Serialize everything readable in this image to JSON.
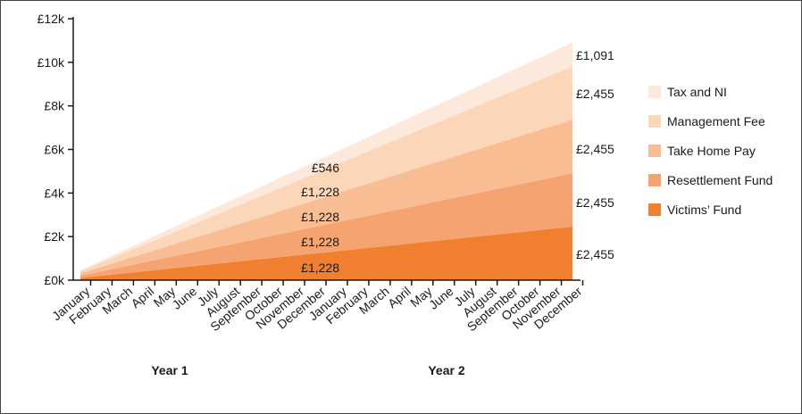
{
  "chart_data": {
    "type": "area",
    "stacked": true,
    "categories": [
      "January",
      "February",
      "March",
      "April",
      "May",
      "June",
      "July",
      "August",
      "September",
      "October",
      "November",
      "December",
      "January",
      "February",
      "March",
      "April",
      "May",
      "June",
      "July",
      "August",
      "September",
      "October",
      "November",
      "December"
    ],
    "groups": [
      "Year 1",
      "Year 2"
    ],
    "yticks": [
      "£0k",
      "£2k",
      "£4k",
      "£6k",
      "£8k",
      "£10k",
      "£12k"
    ],
    "ylim": [
      0,
      12000
    ],
    "series": [
      {
        "name": "Victims’ Fund",
        "color": "#f07f2f",
        "start": 102,
        "end": 2455
      },
      {
        "name": "Resettlement Fund",
        "color": "#f5a370",
        "start": 102,
        "end": 2455
      },
      {
        "name": "Take Home Pay",
        "color": "#f8bd93",
        "start": 102,
        "end": 2455
      },
      {
        "name": "Management Fee",
        "color": "#fbd6b9",
        "start": 102,
        "end": 2455
      },
      {
        "name": "Tax and NI",
        "color": "#fde9dc",
        "start": 45,
        "end": 1091
      }
    ],
    "annotations_year1": [
      "£1,228",
      "£1,228",
      "£1,228",
      "£1,228",
      "£546"
    ],
    "annotations_year2": [
      "£2,455",
      "£2,455",
      "£2,455",
      "£2,455",
      "£1,091"
    ],
    "legend_position": "right",
    "grid": false
  }
}
